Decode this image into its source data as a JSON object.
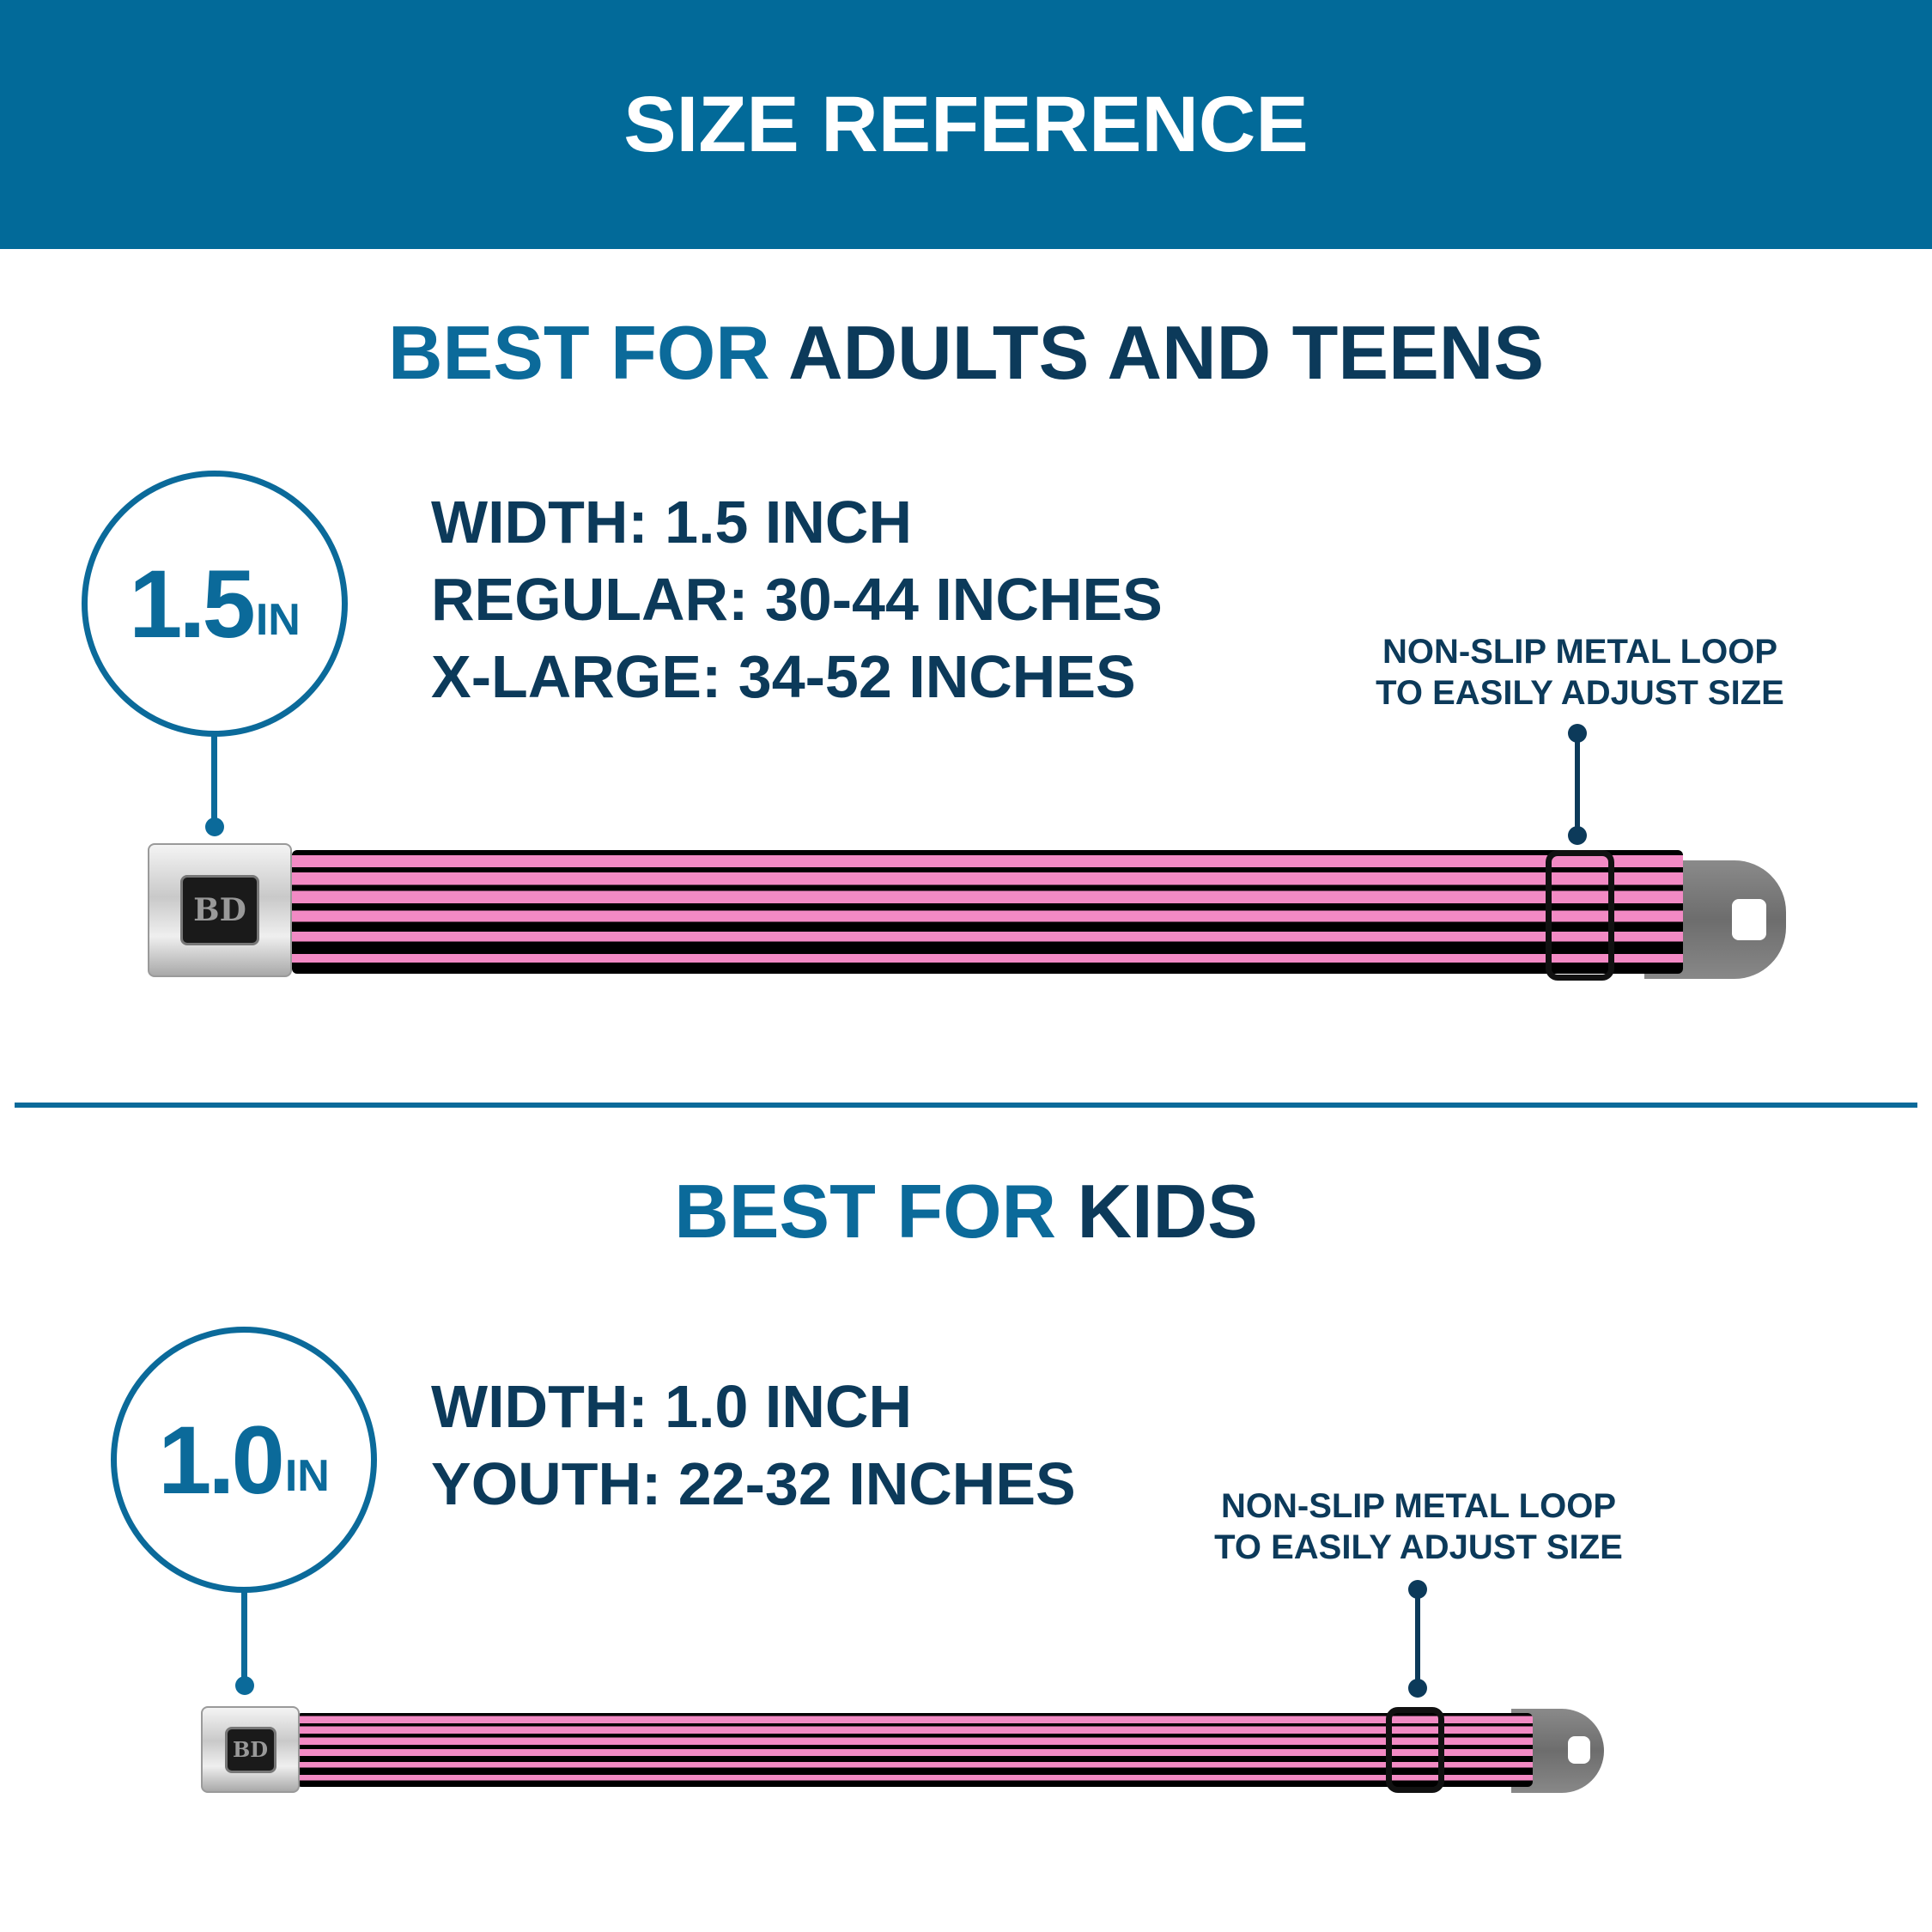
{
  "header": {
    "title": "SIZE REFERENCE",
    "color": "#026a99"
  },
  "sections": [
    {
      "title_accent": "BEST FOR",
      "title_main": "ADULTS AND TEENS",
      "badge": {
        "value": "1.5",
        "unit": "IN"
      },
      "specs": [
        "WIDTH: 1.5 INCH",
        "REGULAR: 30-44 INCHES",
        "X-LARGE: 34-52 INCHES"
      ],
      "note": [
        "NON-SLIP METAL LOOP",
        "TO EASILY ADJUST SIZE"
      ]
    },
    {
      "title_accent": "BEST FOR",
      "title_main": "KIDS",
      "badge": {
        "value": "1.0",
        "unit": "IN"
      },
      "specs": [
        "WIDTH: 1.0 INCH",
        "YOUTH: 22-32 INCHES"
      ],
      "note": [
        "NON-SLIP METAL LOOP",
        "TO EASILY ADJUST SIZE"
      ]
    }
  ],
  "colors": {
    "accent": "#0b6a9a",
    "navy": "#0c3a5a",
    "strap_pink": "#f28ac4",
    "strap_black": "#000000"
  },
  "logo": "BD"
}
